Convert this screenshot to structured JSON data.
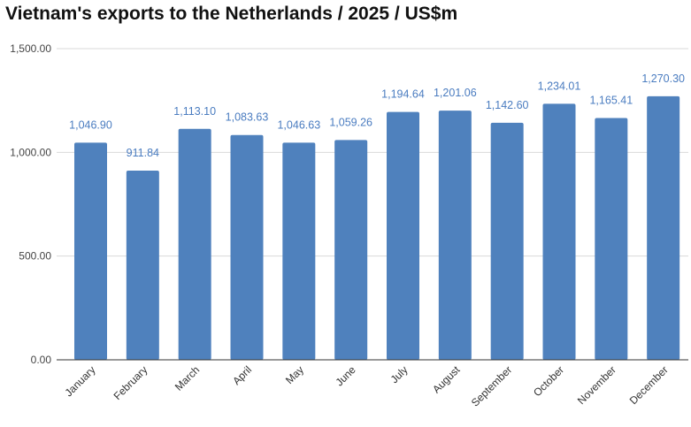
{
  "chart_data": {
    "type": "bar",
    "title": "Vietnam's exports to the Netherlands / 2025 / US$m",
    "xlabel": "",
    "ylabel": "",
    "categories": [
      "January",
      "February",
      "March",
      "April",
      "May",
      "June",
      "July",
      "August",
      "September",
      "October",
      "November",
      "December"
    ],
    "values": [
      1046.9,
      911.84,
      1113.1,
      1083.63,
      1046.63,
      1059.26,
      1194.64,
      1201.06,
      1142.6,
      1234.01,
      1165.41,
      1270.3
    ],
    "value_labels": [
      "1,046.90",
      "911.84",
      "1,113.10",
      "1,083.63",
      "1,046.63",
      "1,059.26",
      "1,194.64",
      "1,201.06",
      "1,142.60",
      "1,234.01",
      "1,165.41",
      "1,270.30"
    ],
    "y_ticks": [
      0,
      500,
      1000,
      1500
    ],
    "y_tick_labels": [
      "0.00",
      "500.00",
      "1,000.00",
      "1,500.00"
    ],
    "ylim": [
      0,
      1500
    ],
    "grid": true,
    "legend": "none",
    "colors": {
      "bar": "#4f81bd",
      "label": "#4a7cc0",
      "grid": "#d9d9d9",
      "axis": "#333333"
    }
  }
}
